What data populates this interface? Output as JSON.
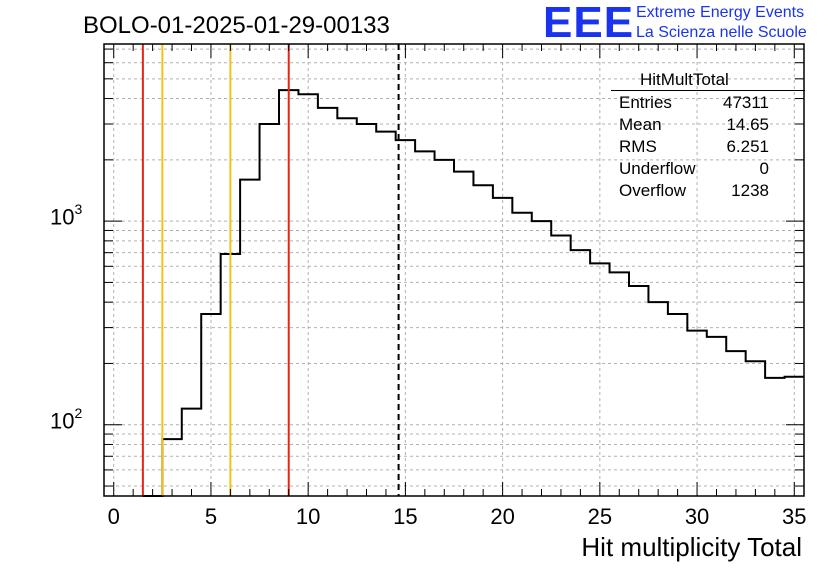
{
  "title": "BOLO-01-2025-01-29-00133",
  "logo": {
    "big": "EEE",
    "line1": "Extreme Energy Events",
    "line2": "La Scienza nelle Scuole"
  },
  "stats": {
    "name": "HitMultTotal",
    "rows": [
      {
        "key": "Entries",
        "value": "47311"
      },
      {
        "key": "Mean",
        "value": "14.65"
      },
      {
        "key": "RMS",
        "value": "6.251"
      },
      {
        "key": "Underflow",
        "value": "0"
      },
      {
        "key": "Overflow",
        "value": "1238"
      }
    ]
  },
  "chart_data": {
    "type": "histogram",
    "xlabel": "Hit multiplicity Total",
    "ylabel": "",
    "xlim": [
      -0.5,
      35.5
    ],
    "ylim_log10": [
      1.65,
      3.87
    ],
    "y_scale": "log",
    "grid": true,
    "x_ticks": [
      "0",
      "5",
      "10",
      "15",
      "20",
      "25",
      "30",
      "35"
    ],
    "y_ticks": [
      {
        "value": 100,
        "base": "10",
        "exp": "2"
      },
      {
        "value": 1000,
        "base": "10",
        "exp": "3"
      }
    ],
    "bin_width": 1,
    "bins": [
      {
        "x": 2,
        "value": 0
      },
      {
        "x": 3,
        "value": 85
      },
      {
        "x": 4,
        "value": 120
      },
      {
        "x": 5,
        "value": 350
      },
      {
        "x": 6,
        "value": 690
      },
      {
        "x": 7,
        "value": 1600
      },
      {
        "x": 8,
        "value": 3000
      },
      {
        "x": 9,
        "value": 4400
      },
      {
        "x": 10,
        "value": 4200
      },
      {
        "x": 11,
        "value": 3600
      },
      {
        "x": 12,
        "value": 3200
      },
      {
        "x": 13,
        "value": 3000
      },
      {
        "x": 14,
        "value": 2750
      },
      {
        "x": 15,
        "value": 2500
      },
      {
        "x": 16,
        "value": 2200
      },
      {
        "x": 17,
        "value": 2000
      },
      {
        "x": 18,
        "value": 1750
      },
      {
        "x": 19,
        "value": 1500
      },
      {
        "x": 20,
        "value": 1300
      },
      {
        "x": 21,
        "value": 1100
      },
      {
        "x": 22,
        "value": 1000
      },
      {
        "x": 23,
        "value": 850
      },
      {
        "x": 24,
        "value": 720
      },
      {
        "x": 25,
        "value": 620
      },
      {
        "x": 26,
        "value": 560
      },
      {
        "x": 27,
        "value": 480
      },
      {
        "x": 28,
        "value": 400
      },
      {
        "x": 29,
        "value": 350
      },
      {
        "x": 30,
        "value": 290
      },
      {
        "x": 31,
        "value": 270
      },
      {
        "x": 32,
        "value": 230
      },
      {
        "x": 33,
        "value": 205
      },
      {
        "x": 34,
        "value": 170
      },
      {
        "x": 35,
        "value": 172
      }
    ],
    "vertical_lines": [
      {
        "x": 1.5,
        "color": "#e8231a",
        "style": "solid"
      },
      {
        "x": 2.5,
        "color": "#f2c21b",
        "style": "solid"
      },
      {
        "x": 6.0,
        "color": "#f2c21b",
        "style": "solid"
      },
      {
        "x": 9.0,
        "color": "#e8231a",
        "style": "solid"
      },
      {
        "x": 14.65,
        "color": "#000000",
        "style": "dashed"
      }
    ]
  }
}
